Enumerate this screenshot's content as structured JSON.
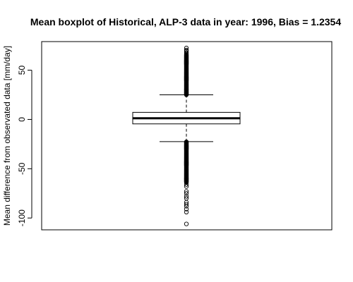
{
  "chart_data": {
    "type": "boxplot",
    "title": "Mean boxplot of Historical, ALP-3 data in year: 1996, Bias = 1.2354",
    "xlabel": "",
    "ylabel": "Mean difference from observated data [mm/day]",
    "ylim": [
      -112,
      79
    ],
    "yticks": [
      -100,
      -50,
      0,
      50
    ],
    "ytick_labels": [
      "-100",
      "-50",
      "0",
      "50"
    ],
    "grid": false,
    "box": {
      "lower_whisker": -22.5,
      "q1": -4.5,
      "median": 1.2,
      "q3": 7.2,
      "upper_whisker": 25,
      "outliers_high_dense_range": [
        25,
        66
      ],
      "outliers_high": [
        67,
        68,
        69.5,
        70.5,
        72.5
      ],
      "outliers_low_dense_range": [
        -64,
        -22.5
      ],
      "outliers_low": [
        -66,
        -68,
        -73,
        -75,
        -78,
        -80,
        -84,
        -86,
        -88,
        -91,
        -94,
        -106
      ]
    }
  }
}
